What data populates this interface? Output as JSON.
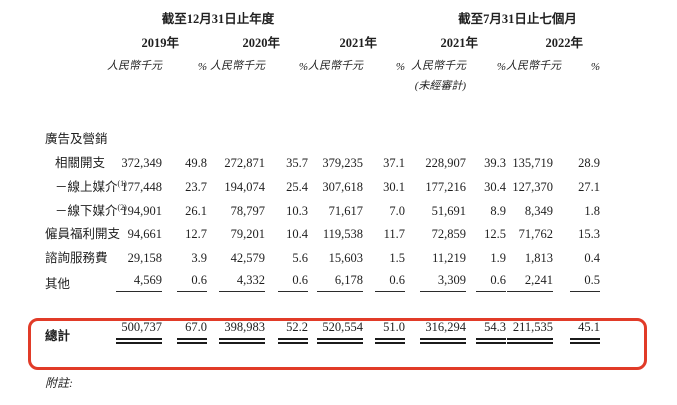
{
  "colors": {
    "accent_red": "#e13b28",
    "text": "#1f1f1f"
  },
  "header": {
    "period_annual": "截至12月31日止年度",
    "period_seven_months": "截至7月31日止七個月",
    "years": [
      "2019年",
      "2020年",
      "2021年",
      "2021年",
      "2022年"
    ],
    "currency_unit": "人民幣千元",
    "percent_sign": "%",
    "unaudited": "(未經審計)"
  },
  "rows": [
    {
      "label": "廣告及營銷",
      "indent": 0,
      "sup": "",
      "values": [
        "",
        "",
        "",
        "",
        "",
        "",
        "",
        "",
        "",
        ""
      ],
      "underline": "none"
    },
    {
      "label": "相關開支",
      "indent": 1,
      "sup": "",
      "values": [
        "372,349",
        "49.8",
        "272,871",
        "35.7",
        "379,235",
        "37.1",
        "228,907",
        "39.3",
        "135,719",
        "28.9"
      ],
      "underline": "none"
    },
    {
      "label": "－線上媒介",
      "indent": 1,
      "sup": "(1)",
      "values": [
        "177,448",
        "23.7",
        "194,074",
        "25.4",
        "307,618",
        "30.1",
        "177,216",
        "30.4",
        "127,370",
        "27.1"
      ],
      "underline": "none"
    },
    {
      "label": "－線下媒介",
      "indent": 1,
      "sup": "(2)",
      "values": [
        "194,901",
        "26.1",
        "78,797",
        "10.3",
        "71,617",
        "7.0",
        "51,691",
        "8.9",
        "8,349",
        "1.8"
      ],
      "underline": "none"
    },
    {
      "label": "僱員福利開支",
      "indent": 0,
      "sup": "",
      "values": [
        "94,661",
        "12.7",
        "79,201",
        "10.4",
        "119,538",
        "11.7",
        "72,859",
        "12.5",
        "71,762",
        "15.3"
      ],
      "underline": "none"
    },
    {
      "label": "諮詢服務費",
      "indent": 0,
      "sup": "",
      "values": [
        "29,158",
        "3.9",
        "42,579",
        "5.6",
        "15,603",
        "1.5",
        "11,219",
        "1.9",
        "1,813",
        "0.4"
      ],
      "underline": "none"
    },
    {
      "label": "其他",
      "indent": 0,
      "sup": "",
      "values": [
        "4,569",
        "0.6",
        "4,332",
        "0.6",
        "6,178",
        "0.6",
        "3,309",
        "0.6",
        "2,241",
        "0.5"
      ],
      "underline": "single"
    }
  ],
  "total": {
    "label": "總計",
    "values": [
      "500,737",
      "67.0",
      "398,983",
      "52.2",
      "520,554",
      "51.0",
      "316,294",
      "54.3",
      "211,535",
      "45.1"
    ]
  },
  "footnote": {
    "label": "附註:"
  }
}
